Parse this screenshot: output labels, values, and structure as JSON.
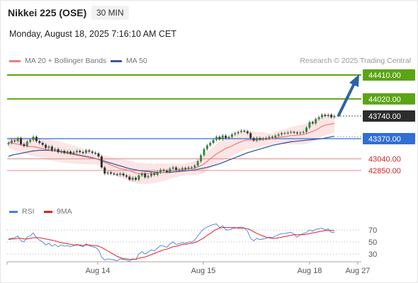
{
  "header": {
    "instrument": "Nikkei 225 (OSE)",
    "timeframe": "30 MIN",
    "timestamp": "Monday, August 18, 2025 7:16:10 AM CET"
  },
  "legend": {
    "ma20": "MA 20 + Bollinger Bands",
    "ma50": "MA 50",
    "rsi": "RSI",
    "rsi_ma": "9MA"
  },
  "credit": "Research © 2025 Trading Central",
  "colors": {
    "ma20": "#ef7b7b",
    "bollinger_fill": "#fbe0e0",
    "ma50": "#3a5a9c",
    "target": "#5aa514",
    "pivot": "#2f6fd6",
    "support": "#d42424",
    "last": "#2d2d2d",
    "candle": "#2e8b3a"
  },
  "chart_data": [
    {
      "type": "candlestick",
      "x_labels": [
        "Aug 14",
        "Aug 15",
        "Aug 18",
        "Aug 27"
      ],
      "levels": [
        {
          "value": 44410.0,
          "label": "44410.00",
          "kind": "target"
        },
        {
          "value": 44020.0,
          "label": "44020.00",
          "kind": "target"
        },
        {
          "value": 43740.0,
          "label": "43740.00",
          "kind": "last"
        },
        {
          "value": 43370.0,
          "label": "43370.00",
          "kind": "pivot"
        },
        {
          "value": 43040.0,
          "label": "43040.00",
          "kind": "support"
        },
        {
          "value": 42850.0,
          "label": "42850.00",
          "kind": "support"
        }
      ],
      "close": [
        43300,
        43340,
        43330,
        43380,
        43280,
        43250,
        43320,
        43350,
        43400,
        43330,
        43300,
        43270,
        43220,
        43240,
        43180,
        43200,
        43150,
        43170,
        43140,
        43160,
        43130,
        43150,
        43170,
        43150,
        43140,
        43180,
        43160,
        43140,
        43130,
        43080,
        42900,
        42800,
        42820,
        42800,
        42790,
        42780,
        42800,
        42770,
        42750,
        42700,
        42730,
        42700,
        42770,
        42800,
        42740,
        42760,
        42800,
        42780,
        42820,
        42860,
        42850,
        42830,
        42880,
        42900,
        42860,
        42870,
        42890,
        42880,
        42900,
        42900,
        42930,
        43000,
        43100,
        43200,
        43260,
        43300,
        43350,
        43400,
        43360,
        43420,
        43380,
        43400,
        43440,
        43460,
        43480,
        43500,
        43490,
        43460,
        43380,
        43340,
        43380,
        43360,
        43370,
        43380,
        43400,
        43390,
        43420,
        43440,
        43460,
        43460,
        43470,
        43480,
        43470,
        43460,
        43470,
        43480,
        43550,
        43640,
        43620,
        43690,
        43720,
        43760,
        43740,
        43760,
        43720,
        43740
      ],
      "ma20": [
        43310,
        43300,
        43290,
        43280,
        43270,
        43260,
        43250,
        43240,
        43240,
        43230,
        43220,
        43210,
        43200,
        43190,
        43180,
        43170,
        43160,
        43150,
        43140,
        43130,
        43120,
        43110,
        43100,
        43090,
        43080,
        43070,
        43060,
        43050,
        43040,
        43030,
        43000,
        42980,
        42960,
        42940,
        42920,
        42900,
        42880,
        42870,
        42860,
        42850,
        42830,
        42810,
        42800,
        42800,
        42800,
        42800,
        42800,
        42800,
        42810,
        42820,
        42820,
        42830,
        42840,
        42850,
        42850,
        42860,
        42860,
        42870,
        42880,
        42880,
        42890,
        42910,
        42930,
        42960,
        43000,
        43040,
        43080,
        43120,
        43150,
        43180,
        43210,
        43230,
        43250,
        43280,
        43300,
        43320,
        43340,
        43350,
        43350,
        43350,
        43350,
        43350,
        43360,
        43360,
        43360,
        43370,
        43380,
        43390,
        43400,
        43400,
        43410,
        43420,
        43420,
        43430,
        43430,
        43440,
        43450,
        43470,
        43490,
        43510,
        43540,
        43570,
        43590,
        43600,
        43610,
        43620
      ],
      "ma50": [
        43080,
        43100,
        43110,
        43120,
        43130,
        43140,
        43150,
        43160,
        43170,
        43175,
        43180,
        43180,
        43180,
        43180,
        43175,
        43170,
        43165,
        43160,
        43150,
        43140,
        43130,
        43120,
        43110,
        43100,
        43090,
        43080,
        43070,
        43060,
        43045,
        43030,
        43015,
        43000,
        42985,
        42970,
        42955,
        42940,
        42925,
        42910,
        42895,
        42880,
        42870,
        42860,
        42850,
        42845,
        42840,
        42835,
        42830,
        42825,
        42820,
        42820,
        42820,
        42820,
        42822,
        42825,
        42830,
        42835,
        42840,
        42845,
        42850,
        42855,
        42860,
        42870,
        42880,
        42890,
        42900,
        42915,
        42930,
        42945,
        42960,
        42980,
        43000,
        43020,
        43040,
        43060,
        43080,
        43100,
        43120,
        43140,
        43155,
        43170,
        43185,
        43200,
        43215,
        43230,
        43245,
        43260,
        43270,
        43280,
        43290,
        43300,
        43310,
        43320,
        43325,
        43330,
        43335,
        43340,
        43345,
        43350,
        43355,
        43360,
        43365,
        43370,
        43380,
        43390,
        43400,
        43410
      ],
      "rsi": [
        55,
        56,
        57,
        60,
        52,
        50,
        58,
        60,
        65,
        57,
        53,
        50,
        45,
        48,
        43,
        46,
        42,
        45,
        43,
        44,
        42,
        44,
        46,
        44,
        42,
        47,
        44,
        42,
        41,
        37,
        25,
        20,
        22,
        21,
        20,
        19,
        22,
        21,
        20,
        18,
        22,
        21,
        30,
        34,
        30,
        33,
        37,
        35,
        40,
        44,
        43,
        41,
        47,
        50,
        46,
        47,
        49,
        48,
        50,
        50,
        53,
        60,
        67,
        72,
        75,
        77,
        79,
        80,
        74,
        77,
        70,
        70,
        72,
        73,
        74,
        75,
        73,
        68,
        56,
        52,
        56,
        54,
        55,
        56,
        58,
        57,
        60,
        62,
        64,
        64,
        65,
        66,
        63,
        58,
        62,
        64,
        66,
        70,
        68,
        71,
        72,
        73,
        70,
        72,
        66,
        66
      ],
      "rsi_ma": [
        54,
        55,
        55,
        56,
        56,
        55,
        55,
        56,
        57,
        57,
        57,
        56,
        55,
        54,
        53,
        52,
        50,
        49,
        48,
        47,
        46,
        45,
        45,
        45,
        44,
        45,
        45,
        44,
        44,
        43,
        41,
        38,
        35,
        32,
        29,
        26,
        24,
        22,
        22,
        21,
        21,
        21,
        23,
        24,
        25,
        27,
        29,
        31,
        33,
        35,
        37,
        38,
        40,
        42,
        43,
        44,
        46,
        46,
        47,
        48,
        49,
        51,
        54,
        57,
        61,
        64,
        68,
        71,
        73,
        74,
        74,
        74,
        74,
        74,
        73,
        73,
        73,
        72,
        70,
        67,
        64,
        62,
        60,
        58,
        57,
        56,
        56,
        57,
        58,
        59,
        60,
        61,
        62,
        62,
        62,
        62,
        63,
        64,
        65,
        66,
        67,
        68,
        69,
        69,
        69,
        69
      ],
      "rsi_ticks": [
        "70",
        "50",
        "30"
      ]
    }
  ]
}
